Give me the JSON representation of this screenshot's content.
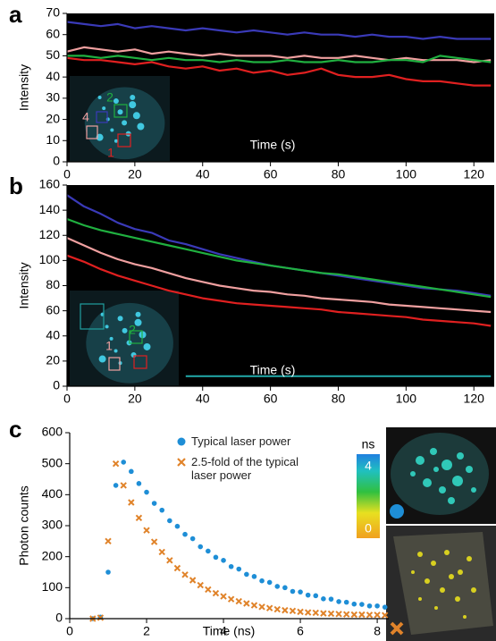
{
  "chart_data": [
    {
      "type": "line",
      "panel": "a",
      "ylabel": "Intensity",
      "xlabel": "Time (s)",
      "background": "#000000",
      "xlim": [
        0,
        126
      ],
      "xticks": [
        0,
        20,
        40,
        60,
        80,
        100,
        120
      ],
      "ylim": [
        0,
        70
      ],
      "yticks": [
        0,
        10,
        20,
        30,
        40,
        50,
        60,
        70
      ],
      "x": [
        0,
        5,
        10,
        15,
        20,
        25,
        30,
        35,
        40,
        45,
        50,
        55,
        60,
        65,
        70,
        75,
        80,
        85,
        90,
        95,
        100,
        105,
        110,
        115,
        120,
        125
      ],
      "series": [
        {
          "color": "#3a3ab8",
          "values": [
            66,
            65,
            64,
            65,
            63,
            64,
            63,
            62,
            63,
            62,
            61,
            62,
            61,
            60,
            61,
            60,
            60,
            59,
            60,
            59,
            59,
            58,
            59,
            58,
            58,
            58
          ]
        },
        {
          "color": "#f0a0a0",
          "values": [
            52,
            54,
            53,
            52,
            53,
            51,
            52,
            51,
            50,
            51,
            50,
            50,
            50,
            49,
            50,
            49,
            49,
            50,
            49,
            48,
            49,
            48,
            48,
            48,
            47,
            48
          ]
        },
        {
          "color": "#20b040",
          "values": [
            50,
            50,
            49,
            50,
            49,
            48,
            49,
            48,
            48,
            47,
            48,
            47,
            47,
            48,
            47,
            47,
            48,
            47,
            47,
            48,
            48,
            47,
            50,
            49,
            48,
            47
          ]
        },
        {
          "color": "#e02020",
          "values": [
            49,
            48,
            48,
            47,
            46,
            47,
            45,
            44,
            45,
            43,
            44,
            42,
            43,
            41,
            42,
            44,
            41,
            40,
            40,
            41,
            39,
            38,
            38,
            37,
            36,
            36
          ]
        }
      ],
      "annotations": [
        {
          "text": "4",
          "color": "#f0a0a0"
        },
        {
          "text": "2",
          "color": "#20b040"
        },
        {
          "text": "1",
          "color": "#e02020"
        }
      ]
    },
    {
      "type": "line",
      "panel": "b",
      "ylabel": "Intensity",
      "xlabel": "Time (s)",
      "background": "#000000",
      "xlim": [
        0,
        126
      ],
      "xticks": [
        0,
        20,
        40,
        60,
        80,
        100,
        120
      ],
      "ylim": [
        0,
        160
      ],
      "yticks": [
        0,
        20,
        40,
        60,
        80,
        100,
        120,
        140,
        160
      ],
      "x": [
        0,
        5,
        10,
        15,
        20,
        25,
        30,
        35,
        40,
        45,
        50,
        55,
        60,
        65,
        70,
        75,
        80,
        85,
        90,
        95,
        100,
        105,
        110,
        115,
        120,
        125
      ],
      "series": [
        {
          "color": "#3a3ab8",
          "values": [
            152,
            143,
            137,
            130,
            125,
            122,
            116,
            113,
            109,
            105,
            102,
            99,
            96,
            94,
            92,
            90,
            88,
            86,
            84,
            82,
            80,
            78,
            77,
            76,
            74,
            72
          ]
        },
        {
          "color": "#20b040",
          "values": [
            133,
            128,
            124,
            121,
            118,
            115,
            112,
            109,
            106,
            103,
            100,
            98,
            96,
            94,
            92,
            90,
            89,
            87,
            85,
            83,
            81,
            79,
            77,
            75,
            73,
            71
          ]
        },
        {
          "color": "#f0a0a0",
          "values": [
            118,
            112,
            106,
            101,
            97,
            94,
            90,
            86,
            83,
            80,
            78,
            76,
            75,
            73,
            72,
            70,
            69,
            68,
            67,
            65,
            64,
            63,
            62,
            61,
            60,
            59
          ]
        },
        {
          "color": "#e02020",
          "values": [
            104,
            99,
            93,
            88,
            84,
            80,
            76,
            73,
            70,
            68,
            66,
            65,
            64,
            63,
            62,
            61,
            59,
            58,
            57,
            56,
            55,
            53,
            52,
            51,
            50,
            48
          ]
        },
        {
          "color": "#20a0a0",
          "values": [
            null,
            null,
            null,
            null,
            null,
            null,
            null,
            8,
            8,
            8,
            8,
            8,
            8,
            8,
            8,
            8,
            8,
            8,
            8,
            8,
            8,
            8,
            8,
            8,
            8,
            8
          ]
        }
      ],
      "annotations": [
        {
          "text": "2",
          "color": "#20b040"
        },
        {
          "text": "1",
          "color": "#f0a0a0"
        }
      ]
    },
    {
      "type": "scatter",
      "panel": "c",
      "ylabel": "Photon counts",
      "xlabel": "Time (ns)",
      "xlim": [
        0,
        8.3
      ],
      "xticks": [
        0,
        2,
        4,
        6,
        8
      ],
      "ylim": [
        0,
        600
      ],
      "yticks": [
        0,
        100,
        200,
        300,
        400,
        500,
        600
      ],
      "x": [
        0.6,
        0.8,
        1.0,
        1.2,
        1.4,
        1.6,
        1.8,
        2.0,
        2.2,
        2.4,
        2.6,
        2.8,
        3.0,
        3.2,
        3.4,
        3.6,
        3.8,
        4.0,
        4.2,
        4.4,
        4.6,
        4.8,
        5.0,
        5.2,
        5.4,
        5.6,
        5.8,
        6.0,
        6.2,
        6.4,
        6.6,
        6.8,
        7.0,
        7.2,
        7.4,
        7.6,
        7.8,
        8.0,
        8.2
      ],
      "series": [
        {
          "name": "Typical laser power",
          "color": "#1e8ed6",
          "marker": "circle",
          "values": [
            0,
            5,
            150,
            430,
            505,
            475,
            436,
            408,
            372,
            350,
            316,
            298,
            272,
            258,
            232,
            218,
            198,
            188,
            168,
            160,
            143,
            136,
            122,
            117,
            104,
            100,
            88,
            86,
            76,
            74,
            64,
            63,
            55,
            53,
            47,
            46,
            41,
            41,
            37
          ]
        },
        {
          "name": "2.5-fold of the typical laser power",
          "color": "#e0832a",
          "marker": "x",
          "values": [
            0,
            3,
            250,
            500,
            430,
            375,
            325,
            285,
            248,
            215,
            188,
            163,
            142,
            124,
            108,
            94,
            82,
            72,
            63,
            56,
            49,
            43,
            38,
            34,
            30,
            27,
            25,
            22,
            20,
            19,
            17,
            16,
            15,
            14,
            13,
            13,
            12,
            12,
            11
          ]
        }
      ],
      "colorbar": {
        "label": "ns",
        "ticks": [
          0,
          4
        ]
      }
    }
  ]
}
